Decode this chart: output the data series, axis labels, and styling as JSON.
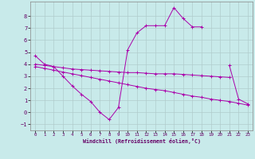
{
  "xlabel": "Windchill (Refroidissement éolien,°C)",
  "background_color": "#c8eaea",
  "grid_color": "#b0cccc",
  "line_color": "#aa00aa",
  "x_ticks": [
    0,
    1,
    2,
    3,
    4,
    5,
    6,
    7,
    8,
    9,
    10,
    11,
    12,
    13,
    14,
    15,
    16,
    17,
    18,
    19,
    20,
    21,
    22,
    23
  ],
  "ylim": [
    -1.5,
    9.2
  ],
  "xlim": [
    -0.5,
    23.5
  ],
  "line1_x": [
    0,
    1,
    2,
    3,
    4,
    5,
    6,
    7,
    8,
    9,
    10,
    11,
    12,
    13,
    14,
    15,
    16,
    17,
    18,
    19,
    20,
    21,
    22,
    23
  ],
  "line1_y": [
    4.7,
    4.0,
    3.8,
    3.0,
    2.2,
    1.5,
    0.9,
    0.0,
    -0.6,
    0.4,
    5.2,
    6.6,
    7.2,
    7.2,
    7.2,
    8.7,
    7.8,
    7.1,
    7.1,
    null,
    null,
    3.9,
    1.1,
    0.7
  ],
  "line2_x": [
    0,
    1,
    2,
    3,
    4,
    5,
    6,
    7,
    8,
    9,
    10,
    11,
    12,
    13,
    14,
    15,
    16,
    17,
    18,
    19,
    20,
    21,
    22,
    23
  ],
  "line2_y": [
    4.0,
    3.9,
    3.8,
    3.7,
    3.6,
    3.55,
    3.5,
    3.45,
    3.4,
    3.35,
    3.3,
    3.3,
    3.25,
    3.2,
    3.2,
    3.2,
    3.15,
    3.1,
    3.05,
    3.0,
    2.95,
    2.9,
    null,
    null
  ],
  "line3_x": [
    0,
    1,
    2,
    3,
    4,
    5,
    6,
    7,
    8,
    9,
    10,
    11,
    12,
    13,
    14,
    15,
    16,
    17,
    18,
    19,
    20,
    21,
    22,
    23
  ],
  "line3_y": [
    3.8,
    3.65,
    3.5,
    3.35,
    3.2,
    3.05,
    2.9,
    2.75,
    2.6,
    2.45,
    2.3,
    2.15,
    2.0,
    1.9,
    1.8,
    1.65,
    1.5,
    1.35,
    1.25,
    1.1,
    1.0,
    0.9,
    0.75,
    0.6
  ]
}
